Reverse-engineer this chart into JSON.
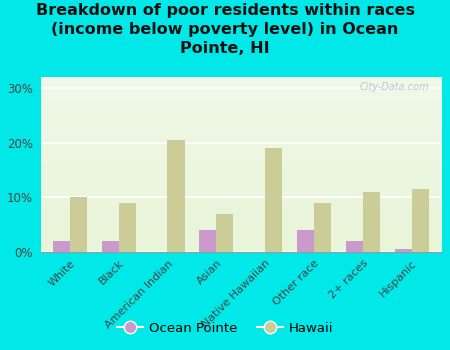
{
  "categories": [
    "White",
    "Black",
    "American Indian",
    "Asian",
    "Native Hawaiian",
    "Other race",
    "2+ races",
    "Hispanic"
  ],
  "ocean_pointe": [
    2.0,
    2.0,
    0.0,
    4.0,
    0.0,
    4.0,
    2.0,
    0.5
  ],
  "hawaii": [
    10.0,
    9.0,
    20.5,
    7.0,
    19.0,
    9.0,
    11.0,
    11.5
  ],
  "ocean_pointe_color": "#cc99cc",
  "hawaii_color": "#cccc99",
  "background_color": "#00e8e8",
  "title": "Breakdown of poor residents within races\n(income below poverty level) in Ocean\nPointe, HI",
  "title_fontsize": 11.5,
  "ylim": [
    0,
    32
  ],
  "yticks": [
    0,
    10,
    20,
    30
  ],
  "ytick_labels": [
    "0%",
    "10%",
    "20%",
    "30%"
  ],
  "legend_ocean_pointe": "Ocean Pointe",
  "legend_hawaii": "Hawaii",
  "watermark": "City-Data.com"
}
